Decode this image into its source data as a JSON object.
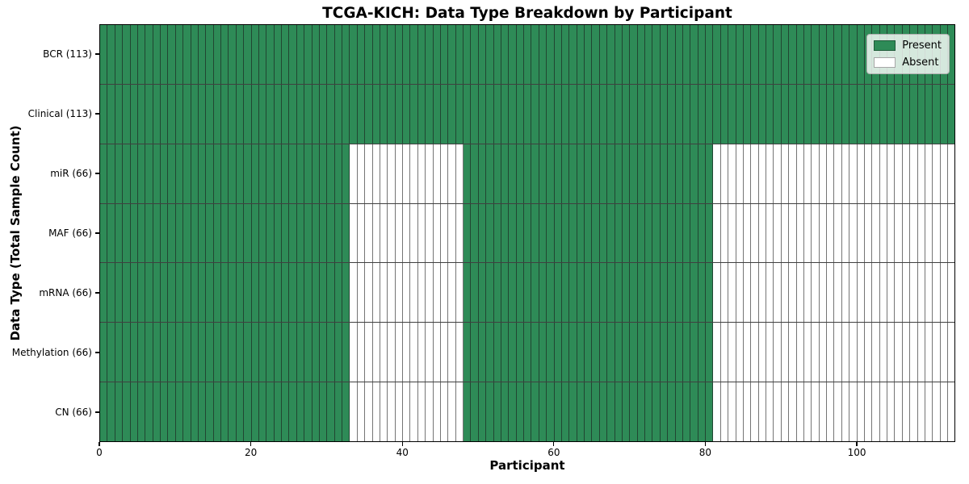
{
  "chart_data": {
    "type": "heatmap",
    "title": "TCGA-KICH: Data Type Breakdown by Participant",
    "xlabel": "Participant",
    "ylabel": "Data Type (Total Sample Count)",
    "n_participants": 113,
    "x_ticks": [
      0,
      20,
      40,
      60,
      80,
      100
    ],
    "xlim": [
      0,
      113
    ],
    "grid": false,
    "legend_position": "top-right",
    "legend": [
      {
        "label": "Present",
        "color": "#2e8b57"
      },
      {
        "label": "Absent",
        "color": "#ffffff"
      }
    ],
    "colors": {
      "present": "#2e8b57",
      "absent": "#ffffff"
    },
    "rows": [
      {
        "label": "BCR (113)",
        "data_type": "BCR",
        "total_sample_count": 113,
        "segments": [
          {
            "from": 0,
            "to": 113,
            "state": "present"
          }
        ]
      },
      {
        "label": "Clinical (113)",
        "data_type": "Clinical",
        "total_sample_count": 113,
        "segments": [
          {
            "from": 0,
            "to": 113,
            "state": "present"
          }
        ]
      },
      {
        "label": "miR (66)",
        "data_type": "miR",
        "total_sample_count": 66,
        "segments": [
          {
            "from": 0,
            "to": 33,
            "state": "present"
          },
          {
            "from": 33,
            "to": 48,
            "state": "absent"
          },
          {
            "from": 48,
            "to": 81,
            "state": "present"
          },
          {
            "from": 81,
            "to": 113,
            "state": "absent"
          }
        ]
      },
      {
        "label": "MAF (66)",
        "data_type": "MAF",
        "total_sample_count": 66,
        "segments": [
          {
            "from": 0,
            "to": 33,
            "state": "present"
          },
          {
            "from": 33,
            "to": 48,
            "state": "absent"
          },
          {
            "from": 48,
            "to": 81,
            "state": "present"
          },
          {
            "from": 81,
            "to": 113,
            "state": "absent"
          }
        ]
      },
      {
        "label": "mRNA (66)",
        "data_type": "mRNA",
        "total_sample_count": 66,
        "segments": [
          {
            "from": 0,
            "to": 33,
            "state": "present"
          },
          {
            "from": 33,
            "to": 48,
            "state": "absent"
          },
          {
            "from": 48,
            "to": 81,
            "state": "present"
          },
          {
            "from": 81,
            "to": 113,
            "state": "absent"
          }
        ]
      },
      {
        "label": "Methylation (66)",
        "data_type": "Methylation",
        "total_sample_count": 66,
        "segments": [
          {
            "from": 0,
            "to": 33,
            "state": "present"
          },
          {
            "from": 33,
            "to": 48,
            "state": "absent"
          },
          {
            "from": 48,
            "to": 81,
            "state": "present"
          },
          {
            "from": 81,
            "to": 113,
            "state": "absent"
          }
        ]
      },
      {
        "label": "CN (66)",
        "data_type": "CN",
        "total_sample_count": 66,
        "segments": [
          {
            "from": 0,
            "to": 33,
            "state": "present"
          },
          {
            "from": 33,
            "to": 48,
            "state": "absent"
          },
          {
            "from": 48,
            "to": 81,
            "state": "present"
          },
          {
            "from": 81,
            "to": 113,
            "state": "absent"
          }
        ]
      }
    ]
  }
}
